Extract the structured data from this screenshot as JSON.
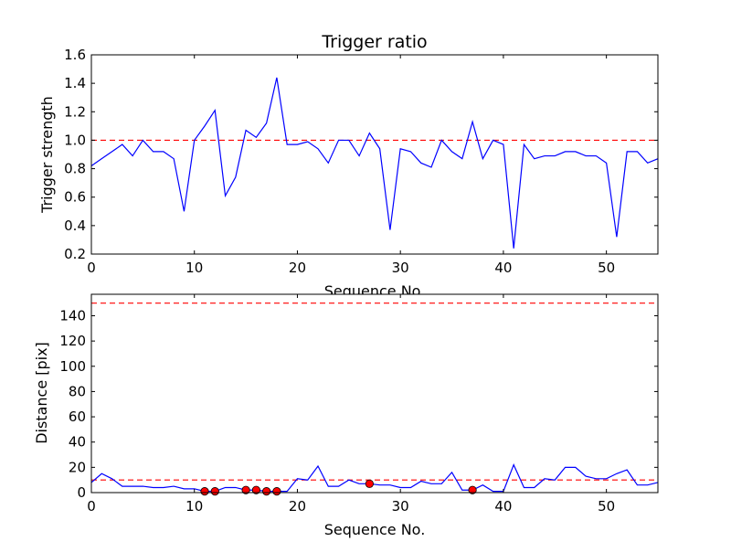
{
  "chart_data": [
    {
      "type": "line",
      "title": "Trigger ratio",
      "xlabel": "Sequence No.",
      "ylabel": "Trigger strength",
      "xlim": [
        0,
        55
      ],
      "ylim": [
        0.2,
        1.6
      ],
      "xticks": [
        0,
        10,
        20,
        30,
        40,
        50
      ],
      "yticks": [
        0.2,
        0.4,
        0.6,
        0.8,
        1.0,
        1.2,
        1.4,
        1.6
      ],
      "ytick_decimals": 1,
      "grid": false,
      "threshold": 1.0,
      "threshold_color": "#ff0000",
      "line_color": "#0000ff",
      "x": [
        0,
        1,
        2,
        3,
        4,
        5,
        6,
        7,
        8,
        9,
        10,
        11,
        12,
        13,
        14,
        15,
        16,
        17,
        18,
        19,
        20,
        21,
        22,
        23,
        24,
        25,
        26,
        27,
        28,
        29,
        30,
        31,
        32,
        33,
        34,
        35,
        36,
        37,
        38,
        39,
        40,
        41,
        42,
        43,
        44,
        45,
        46,
        47,
        48,
        49,
        50,
        51,
        52,
        53,
        54,
        55
      ],
      "values": [
        0.82,
        0.87,
        0.92,
        0.97,
        0.89,
        1.0,
        0.92,
        0.92,
        0.87,
        0.5,
        1.0,
        1.1,
        1.21,
        0.61,
        0.74,
        1.07,
        1.02,
        1.12,
        1.44,
        0.97,
        0.97,
        0.99,
        0.94,
        0.84,
        1.0,
        1.0,
        0.89,
        1.05,
        0.94,
        0.37,
        0.94,
        0.92,
        0.84,
        0.81,
        1.0,
        0.92,
        0.87,
        1.13,
        0.87,
        1.0,
        0.97,
        0.24,
        0.97,
        0.87,
        0.89,
        0.89,
        0.92,
        0.92,
        0.89,
        0.89,
        0.84,
        0.32,
        0.92,
        0.92,
        0.84,
        0.87
      ]
    },
    {
      "type": "line",
      "title": "",
      "xlabel": "Sequence No.",
      "ylabel": "Distance [pix]",
      "xlim": [
        0,
        55
      ],
      "ylim": [
        0,
        157
      ],
      "xticks": [
        0,
        10,
        20,
        30,
        40,
        50
      ],
      "yticks": [
        0,
        20,
        40,
        60,
        80,
        100,
        120,
        140
      ],
      "ytick_decimals": 0,
      "grid": false,
      "thresholds": [
        10,
        150
      ],
      "threshold_color": "#ff0000",
      "line_color": "#0000ff",
      "marker_color": "#ff0000",
      "x": [
        0,
        1,
        2,
        3,
        4,
        5,
        6,
        7,
        8,
        9,
        10,
        11,
        12,
        13,
        14,
        15,
        16,
        17,
        18,
        19,
        20,
        21,
        22,
        23,
        24,
        25,
        26,
        27,
        28,
        29,
        30,
        31,
        32,
        33,
        34,
        35,
        36,
        37,
        38,
        39,
        40,
        41,
        42,
        43,
        44,
        45,
        46,
        47,
        48,
        49,
        50,
        51,
        52,
        53,
        54,
        55
      ],
      "values": [
        8,
        15,
        11,
        5,
        5,
        5,
        4,
        4,
        5,
        3,
        3,
        1,
        1,
        4,
        4,
        2,
        2,
        1,
        1,
        1,
        11,
        10,
        21,
        5,
        5,
        10,
        7,
        7,
        6,
        6,
        4,
        4,
        9,
        7,
        7,
        16,
        2,
        2,
        6,
        1,
        1,
        22,
        4,
        4,
        11,
        10,
        20,
        20,
        13,
        11,
        11,
        15,
        18,
        6,
        6,
        8
      ],
      "markers": [
        {
          "x": 11,
          "y": 1
        },
        {
          "x": 12,
          "y": 1
        },
        {
          "x": 15,
          "y": 2
        },
        {
          "x": 16,
          "y": 2
        },
        {
          "x": 17,
          "y": 1
        },
        {
          "x": 18,
          "y": 1
        },
        {
          "x": 27,
          "y": 7
        },
        {
          "x": 37,
          "y": 2
        }
      ]
    }
  ]
}
